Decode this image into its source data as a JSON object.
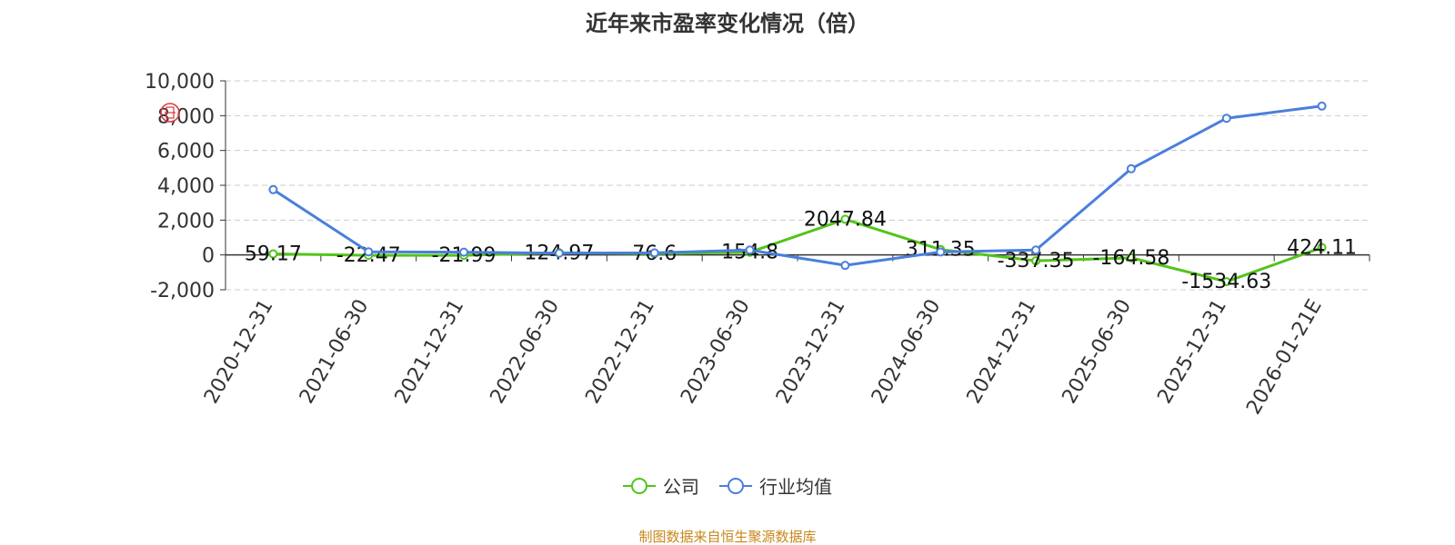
{
  "chart_data": {
    "type": "line",
    "title": "近年来市盈率变化情况（倍）",
    "categories": [
      "2020-12-31",
      "2021-06-30",
      "2021-12-31",
      "2022-06-30",
      "2022-12-31",
      "2023-06-30",
      "2023-12-31",
      "2024-06-30",
      "2024-12-31",
      "2025-06-30",
      "2025-12-31",
      "2026-01-21E"
    ],
    "series": [
      {
        "name": "公司",
        "color": "#52c41a",
        "values": [
          59.17,
          -22.47,
          -21.99,
          124.97,
          76.6,
          154.8,
          2047.84,
          311.35,
          -337.35,
          -164.58,
          -1534.63,
          424.11
        ],
        "labels": [
          "59.17",
          "-22.47",
          "-21.99",
          "124.97",
          "76.6",
          "154.8",
          "2047.84",
          "311.35",
          "-337.35",
          "-164.58",
          "-1534.63",
          "424.11"
        ]
      },
      {
        "name": "行业均值",
        "color": "#4a7fdc",
        "values": [
          3750,
          180,
          160,
          100,
          120,
          280,
          -600,
          170,
          280,
          4950,
          7850,
          8550
        ]
      }
    ],
    "yticks": [
      "10,000",
      "8,000",
      "6,000",
      "4,000",
      "2,000",
      "0",
      "-2,000"
    ],
    "ylim": [
      -2000,
      10000
    ],
    "grid": true,
    "legend_position": "bottom"
  },
  "legend": {
    "company": "公司",
    "industry": "行业均值"
  },
  "source_note": "制图数据来自恒生聚源数据库",
  "watermark_icon": "red-seal-icon"
}
